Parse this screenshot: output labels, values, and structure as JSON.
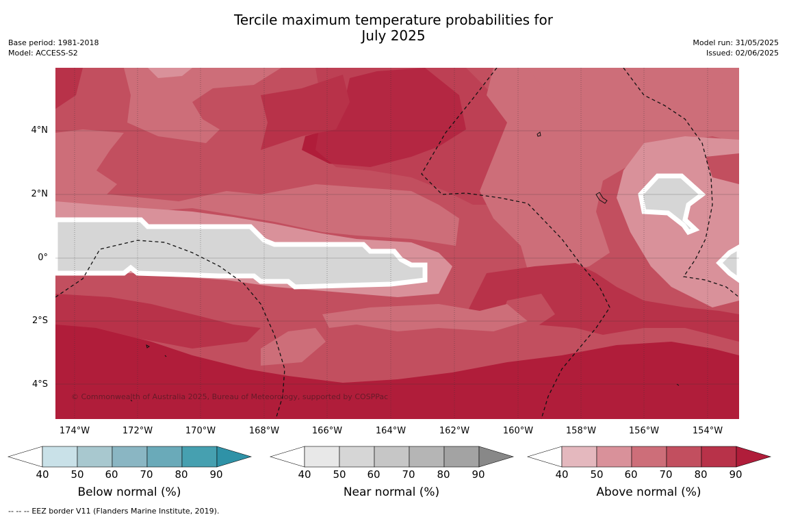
{
  "title": {
    "line1": "Tercile maximum temperature probabilities for",
    "line2": "July 2025"
  },
  "meta_left": {
    "base_period": "Base period: 1981-2018",
    "model": "Model: ACCESS-S2"
  },
  "meta_right": {
    "model_run": "Model run: 31/05/2025",
    "issued": "Issued: 02/06/2025"
  },
  "map": {
    "copyright": "© Commonwealth of Australia 2025, Bureau of Meteorology, supported by COSPPac",
    "lat_labels": [
      "4°N",
      "2°N",
      "0°",
      "2°S",
      "4°S"
    ],
    "lon_labels": [
      "174°W",
      "172°W",
      "170°W",
      "168°W",
      "166°W",
      "164°W",
      "162°W",
      "160°W",
      "158°W",
      "156°W",
      "154°W"
    ]
  },
  "colorbars": [
    {
      "title": "Below normal (%)",
      "ticks": [
        "40",
        "50",
        "60",
        "70",
        "80",
        "90"
      ],
      "colors": [
        "#ffffff",
        "#c9e1e8",
        "#a8c8cf",
        "#8ab6c3",
        "#6aaab9",
        "#46a0b0",
        "#2f92a7"
      ]
    },
    {
      "title": "Near normal (%)",
      "ticks": [
        "40",
        "50",
        "60",
        "70",
        "80",
        "90"
      ],
      "colors": [
        "#ffffff",
        "#e8e8e8",
        "#d6d6d6",
        "#c6c6c6",
        "#b5b5b5",
        "#a3a3a3",
        "#888888"
      ]
    },
    {
      "title": "Above normal (%)",
      "ticks": [
        "40",
        "50",
        "60",
        "70",
        "80",
        "90"
      ],
      "colors": [
        "#ffffff",
        "#e4b8be",
        "#d9919a",
        "#cd6e79",
        "#c24f5f",
        "#b83249",
        "#b01d3a"
      ]
    }
  ],
  "footer": {
    "prefix": "--  --  --",
    "text": "EEZ border V11 (Flanders Marine Institute, 2019)."
  }
}
